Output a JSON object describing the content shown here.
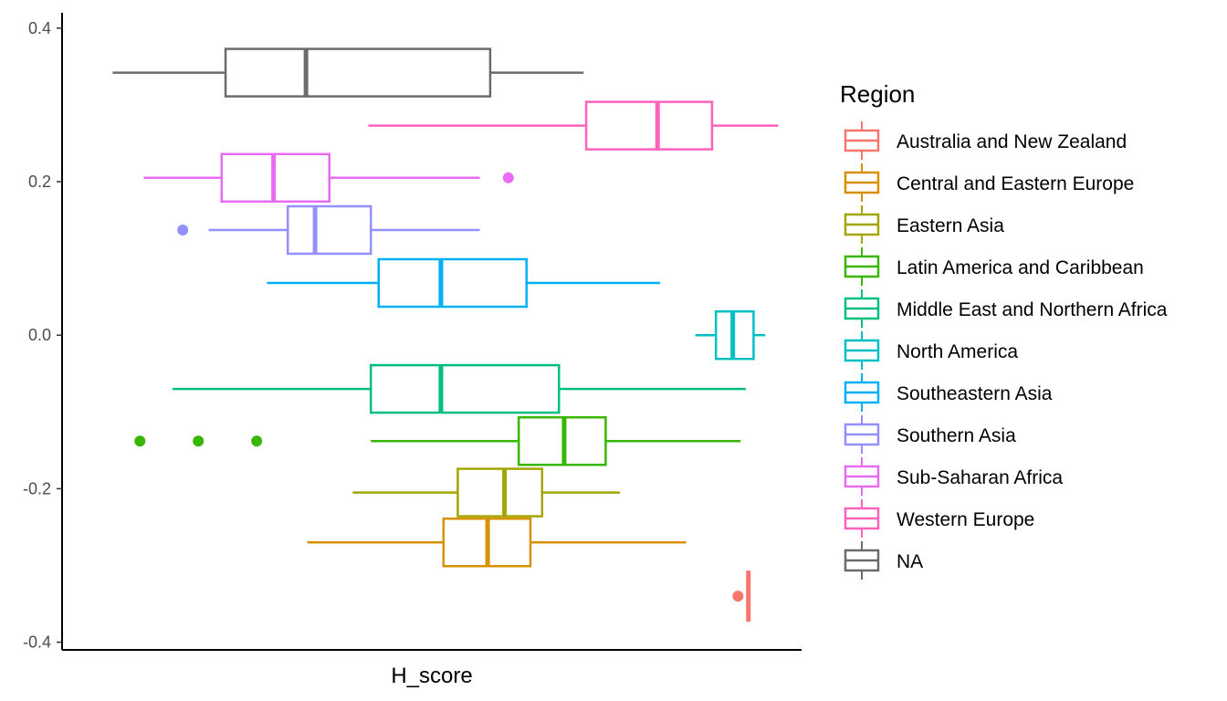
{
  "chart_data": {
    "type": "boxplot",
    "xlabel": "H_score",
    "ylabel": "",
    "ylim": [
      -0.41,
      0.42
    ],
    "y_ticks": [
      0.4,
      0.2,
      0.0,
      -0.2,
      -0.4
    ],
    "y_tick_labels": [
      "0.4",
      "0.2",
      "0.0",
      "-0.2",
      "-0.4"
    ],
    "grid": false,
    "legend_title": "Region",
    "legend_position": "right",
    "series": [
      {
        "name": "Australia and New Zealand",
        "color": "#F8766D",
        "y": -0.34,
        "q1": 7.28,
        "median": 7.29,
        "q3": 7.3,
        "whisker_low": 7.28,
        "whisker_high": 7.3,
        "outliers": [
          7.21
        ]
      },
      {
        "name": "Central and Eastern Europe",
        "color": "#D89000",
        "y": -0.27,
        "q1": 4.94,
        "median": 5.28,
        "q3": 5.61,
        "whisker_low": 3.89,
        "whisker_high": 6.81,
        "outliers": []
      },
      {
        "name": "Eastern Asia",
        "color": "#A3A500",
        "y": -0.205,
        "q1": 5.05,
        "median": 5.41,
        "q3": 5.7,
        "whisker_low": 4.24,
        "whisker_high": 6.3,
        "outliers": []
      },
      {
        "name": "Latin America and Caribbean",
        "color": "#39B600",
        "y": -0.138,
        "q1": 5.52,
        "median": 5.87,
        "q3": 6.19,
        "whisker_low": 4.38,
        "whisker_high": 7.23,
        "outliers": [
          2.6,
          3.05,
          3.5
        ]
      },
      {
        "name": "Middle East and Northern Africa",
        "color": "#00BF7D",
        "y": -0.07,
        "q1": 4.38,
        "median": 4.92,
        "q3": 5.83,
        "whisker_low": 2.85,
        "whisker_high": 7.27,
        "outliers": []
      },
      {
        "name": "North America",
        "color": "#00BFC4",
        "y": 0.0,
        "q1": 7.04,
        "median": 7.17,
        "q3": 7.33,
        "whisker_low": 6.88,
        "whisker_high": 7.42,
        "outliers": []
      },
      {
        "name": "Southeastern Asia",
        "color": "#00B0F6",
        "y": 0.068,
        "q1": 4.44,
        "median": 4.92,
        "q3": 5.58,
        "whisker_low": 3.58,
        "whisker_high": 6.61,
        "outliers": []
      },
      {
        "name": "Southern Asia",
        "color": "#9590FF",
        "y": 0.137,
        "q1": 3.74,
        "median": 3.95,
        "q3": 4.38,
        "whisker_low": 3.13,
        "whisker_high": 5.22,
        "outliers": [
          2.93
        ]
      },
      {
        "name": "Sub-Saharan Africa",
        "color": "#E76BF3",
        "y": 0.205,
        "q1": 3.23,
        "median": 3.63,
        "q3": 4.06,
        "whisker_low": 2.63,
        "whisker_high": 5.22,
        "outliers": [
          5.44
        ]
      },
      {
        "name": "Western Europe",
        "color": "#FF62BC",
        "y": 0.273,
        "q1": 6.04,
        "median": 6.59,
        "q3": 7.01,
        "whisker_low": 4.36,
        "whisker_high": 7.52,
        "outliers": []
      },
      {
        "name": "NA",
        "color": "#6B6B6B",
        "y": 0.342,
        "q1": 3.26,
        "median": 3.88,
        "q3": 5.3,
        "whisker_low": 2.39,
        "whisker_high": 6.02,
        "outliers": []
      }
    ]
  }
}
